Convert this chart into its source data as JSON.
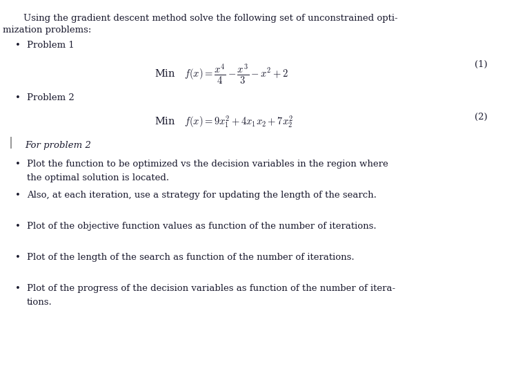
{
  "background_color": "#ffffff",
  "text_color": "#1a1a2e",
  "fig_width": 7.48,
  "fig_height": 5.63,
  "font_size_body": 9.5,
  "font_size_eq": 10.5,
  "header_line1": "Using the gradient descent method solve the following set of unconstrained opti-",
  "header_line2": "mization problems:",
  "problem1_label": "Problem 1",
  "problem2_label": "Problem 2",
  "eq1_math": "Min   $f(x) = \\dfrac{x^4}{4} - \\dfrac{x^3}{3} - x^2 + 2$",
  "eq1_number": "(1)",
  "eq2_math": "Min   $f(x) = 9x_1^2 + 4x_1 x_2 + 7x_2^2$",
  "eq2_number": "(2)",
  "for_problem2": "For problem 2",
  "bullet1_line1": "Plot the function to be optimized vs the decision variables in the region where",
  "bullet1_line2": "the optimal solution is located.",
  "bullet2": "Also, at each iteration, use a strategy for updating the length of the search.",
  "bullet3": "Plot of the objective function values as function of the number of iterations.",
  "bullet4": "Plot of the length of the search as function of the number of iterations.",
  "bullet5_line1": "Plot of the progress of the decision variables as function of the number of itera-",
  "bullet5_line2": "tions."
}
